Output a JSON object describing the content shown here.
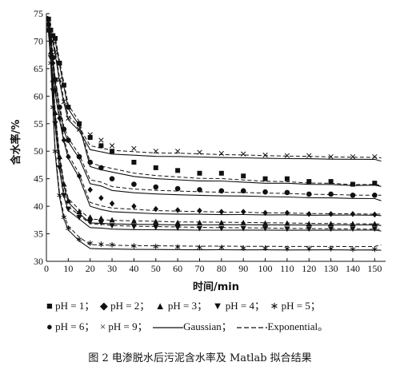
{
  "chart_data": {
    "type": "scatter",
    "xlabel": "时间/min",
    "ylabel": "含水率/%",
    "xlim": [
      0,
      155
    ],
    "ylim": [
      30,
      75
    ],
    "xticks": [
      0,
      10,
      20,
      30,
      40,
      50,
      60,
      70,
      80,
      90,
      100,
      110,
      120,
      130,
      140,
      150
    ],
    "yticks": [
      30,
      35,
      40,
      45,
      50,
      55,
      60,
      65,
      70,
      75
    ],
    "series": [
      {
        "name": "pH=1",
        "marker": "square",
        "x": [
          1,
          2,
          3,
          4,
          6,
          8,
          10,
          15,
          20,
          25,
          30,
          40,
          50,
          60,
          70,
          80,
          90,
          100,
          110,
          120,
          130,
          140,
          150
        ],
        "y": [
          74,
          72,
          71,
          70.5,
          66,
          62,
          58,
          55,
          52.5,
          51,
          50,
          48,
          47,
          46.5,
          46,
          46,
          45.5,
          45,
          45,
          44.5,
          44.5,
          44,
          44.2
        ],
        "exp_end": 43.8,
        "gauss_end": 43.6
      },
      {
        "name": "pH=2",
        "marker": "diamond",
        "x": [
          1,
          2,
          3,
          4,
          6,
          8,
          10,
          15,
          20,
          25,
          30,
          40,
          50,
          60,
          70,
          80,
          90,
          100,
          110,
          120,
          130,
          140,
          150
        ],
        "y": [
          73,
          70,
          66,
          61,
          56,
          52,
          49,
          45.5,
          43,
          41.5,
          40.5,
          40,
          39.5,
          39.3,
          39.2,
          39,
          39,
          38.8,
          38.8,
          38.6,
          38.6,
          38.6,
          38.5
        ],
        "exp_end": 38.6,
        "gauss_end": 38.3
      },
      {
        "name": "pH=3",
        "marker": "triangle-up",
        "x": [
          1,
          2,
          3,
          4,
          6,
          8,
          10,
          15,
          20,
          25,
          30,
          40,
          50,
          60,
          70,
          80,
          90,
          100,
          110,
          120,
          130,
          140,
          150
        ],
        "y": [
          72,
          68,
          63,
          57,
          49,
          44,
          41,
          39,
          38,
          37.8,
          37.5,
          37.3,
          37.2,
          37,
          37,
          37,
          37,
          36.9,
          36.9,
          36.8,
          36.8,
          36.8,
          36.8
        ],
        "exp_end": 36.8,
        "gauss_end": 36.5
      },
      {
        "name": "pH=4",
        "marker": "triangle-down",
        "x": [
          1,
          2,
          3,
          4,
          6,
          8,
          10,
          15,
          20,
          25,
          30,
          40,
          50,
          60,
          70,
          80,
          90,
          100,
          110,
          120,
          130,
          140,
          150
        ],
        "y": [
          72,
          67,
          61,
          55,
          47,
          42,
          39.5,
          38,
          37.2,
          37,
          36.5,
          36.3,
          36.2,
          36.1,
          36,
          36,
          36,
          36,
          35.9,
          35.9,
          35.9,
          35.9,
          35.9
        ],
        "exp_end": 35.8,
        "gauss_end": 35.5
      },
      {
        "name": "pH=5",
        "marker": "asterisk",
        "x": [
          1,
          2,
          3,
          4,
          6,
          8,
          10,
          15,
          20,
          25,
          30,
          40,
          50,
          60,
          70,
          80,
          90,
          100,
          110,
          120,
          130,
          140,
          150
        ],
        "y": [
          72,
          66,
          58,
          50,
          42,
          38,
          36,
          34,
          33.3,
          33.1,
          33,
          32.8,
          32.7,
          32.6,
          32.5,
          32.5,
          32.4,
          32.4,
          32.3,
          32.3,
          32.3,
          32.2,
          32.2
        ],
        "exp_end": 33.0,
        "gauss_end": 32.0
      },
      {
        "name": "pH=6",
        "marker": "circle",
        "x": [
          1,
          2,
          3,
          4,
          6,
          8,
          10,
          15,
          20,
          25,
          30,
          40,
          50,
          60,
          70,
          80,
          90,
          100,
          110,
          120,
          130,
          140,
          150
        ],
        "y": [
          73,
          71,
          67,
          63,
          58,
          54,
          52,
          49,
          48,
          47,
          45,
          44,
          43.5,
          43.2,
          43,
          42.8,
          42.8,
          42.6,
          42.5,
          42.2,
          42.2,
          42,
          42
        ],
        "exp_end": 42.0,
        "gauss_end": 41.0
      },
      {
        "name": "pH=9",
        "marker": "x",
        "x": [
          1,
          2,
          3,
          4,
          6,
          8,
          10,
          15,
          20,
          25,
          30,
          40,
          50,
          60,
          70,
          80,
          90,
          100,
          110,
          120,
          130,
          140,
          150
        ],
        "y": [
          73,
          71,
          70,
          68,
          63,
          59,
          56,
          54,
          53,
          52,
          51,
          50.5,
          50,
          50,
          49.8,
          49.6,
          49.5,
          49.3,
          49.2,
          49.2,
          49,
          49,
          49
        ],
        "exp_end": 48.8,
        "gauss_end": 48.2
      }
    ],
    "legend": {
      "position": "bottom",
      "row1": [
        "■ pH = 1；",
        "◆ pH = 2；",
        "▲ pH = 3；",
        "▼ pH = 4；",
        "∗ pH = 5；"
      ],
      "row2": [
        "● pH = 6；",
        "× pH = 9；",
        "Gaussian；",
        "Exponential。"
      ]
    },
    "fit_lines": {
      "gaussian": "solid",
      "exponential": "dashed"
    },
    "caption": "图 2    电渗脱水后污泥含水率及 Matlab 拟合结果"
  }
}
